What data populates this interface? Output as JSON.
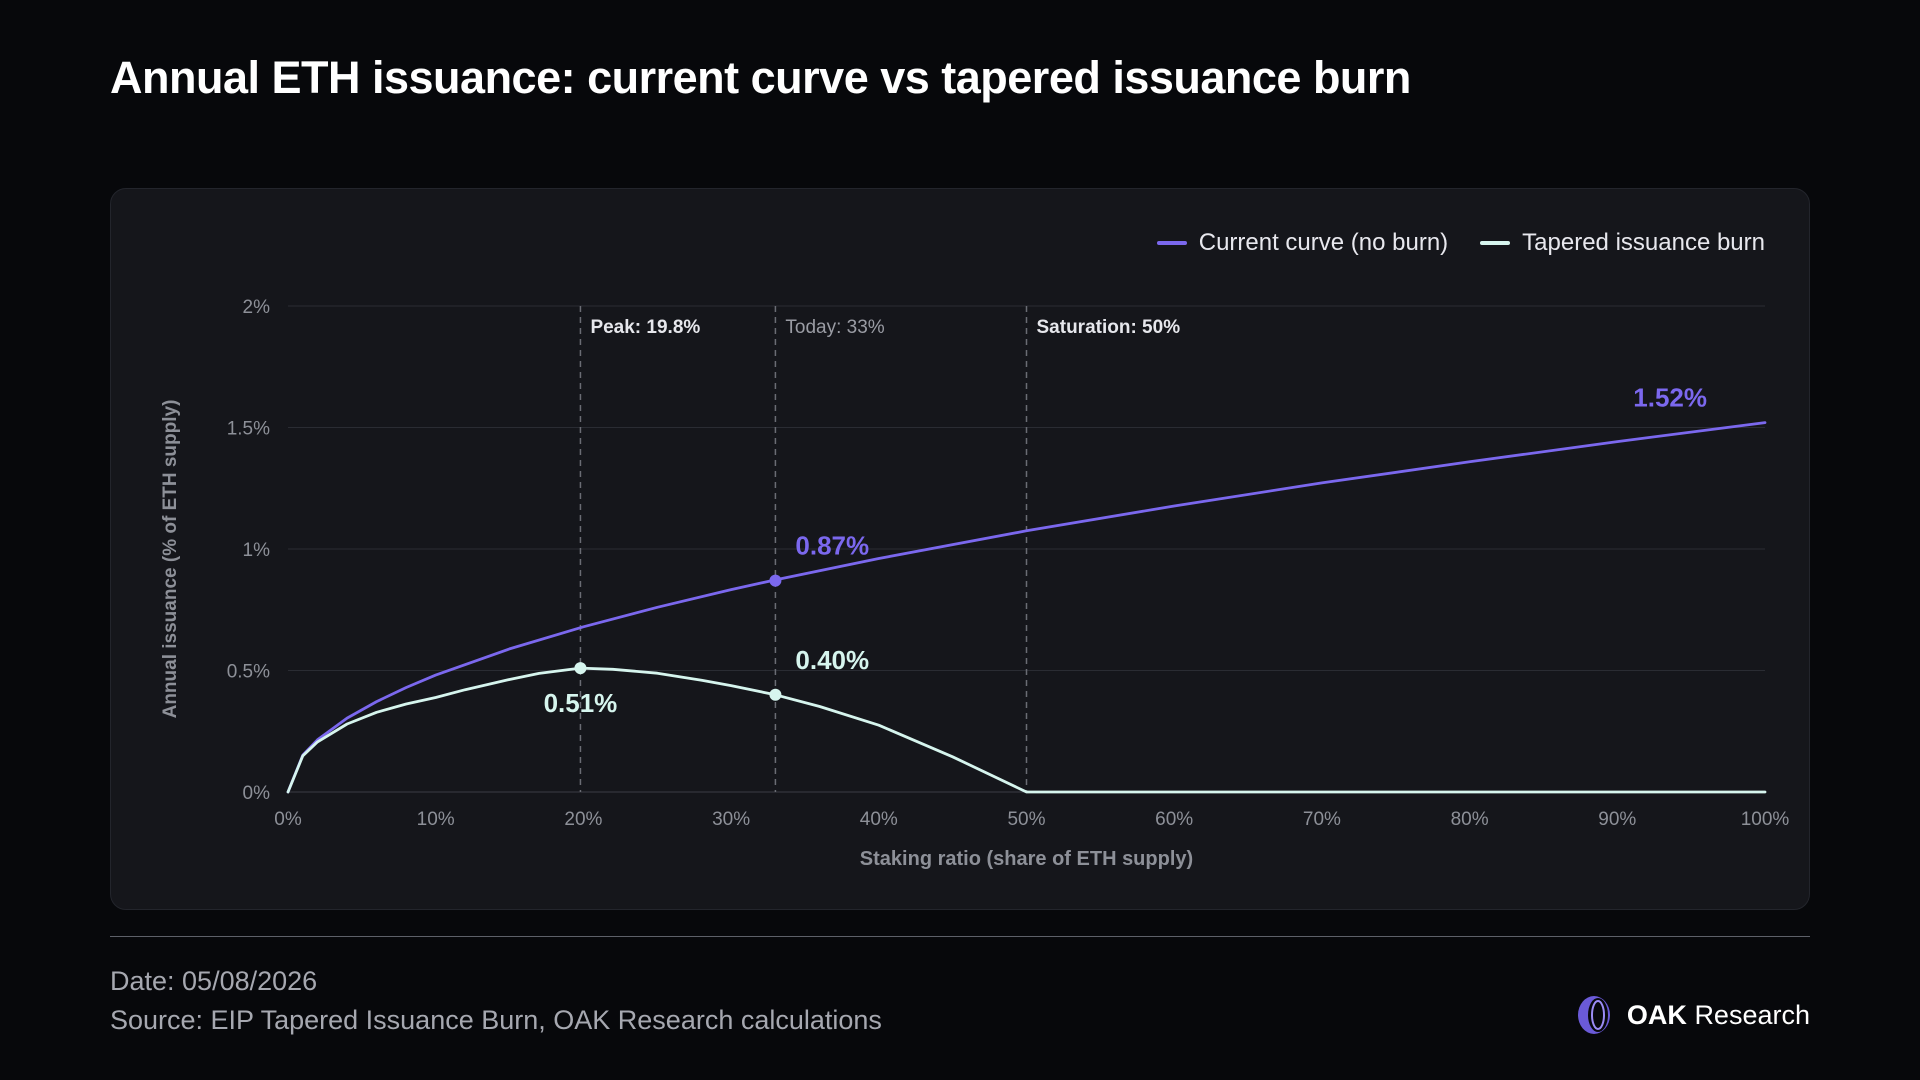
{
  "header": {
    "title": "Annual ETH issuance: current curve vs tapered issuance burn"
  },
  "colors": {
    "current": "#7b68ee",
    "tapered": "#d6f5ee",
    "grid": "#2a2c33",
    "tick": "#8d9098",
    "marker_label": "#e6e7ec",
    "today_label": "#9a9ca4"
  },
  "chart_data": {
    "type": "line",
    "xlabel": "Staking ratio (share of ETH supply)",
    "ylabel": "Annual issuance (% of ETH supply)",
    "xlim": [
      0,
      100
    ],
    "ylim": [
      0,
      2
    ],
    "x_ticks": [
      "0%",
      "10%",
      "20%",
      "30%",
      "40%",
      "50%",
      "60%",
      "70%",
      "80%",
      "90%",
      "100%"
    ],
    "y_ticks": [
      "0%",
      "0.5%",
      "1%",
      "1.5%",
      "2%"
    ],
    "grid": "horizontal",
    "legend_position": "top-right",
    "series": [
      {
        "name": "Current curve (no burn)",
        "x": [
          0,
          1,
          2,
          4,
          6,
          8,
          10,
          15,
          20,
          25,
          30,
          33,
          40,
          50,
          60,
          70,
          80,
          90,
          100
        ],
        "y": [
          0,
          0.152,
          0.215,
          0.304,
          0.372,
          0.43,
          0.481,
          0.589,
          0.68,
          0.76,
          0.833,
          0.873,
          0.961,
          1.075,
          1.177,
          1.272,
          1.359,
          1.442,
          1.52
        ]
      },
      {
        "name": "Tapered issuance burn",
        "x": [
          0,
          1,
          2,
          4,
          6,
          8,
          10,
          12,
          15,
          17,
          19.8,
          22,
          25,
          28,
          30,
          33,
          36,
          40,
          45,
          50,
          60,
          70,
          80,
          90,
          100
        ],
        "y": [
          0,
          0.149,
          0.206,
          0.28,
          0.328,
          0.362,
          0.389,
          0.421,
          0.463,
          0.488,
          0.51,
          0.505,
          0.489,
          0.46,
          0.438,
          0.4,
          0.352,
          0.275,
          0.145,
          0,
          0,
          0,
          0,
          0,
          0
        ]
      }
    ],
    "markers": [
      {
        "x": 19.8,
        "label": "Peak: 19.8%",
        "style": "bold"
      },
      {
        "x": 33,
        "label": "Today: 33%",
        "style": "muted"
      },
      {
        "x": 50,
        "label": "Saturation: 50%",
        "style": "bold"
      }
    ],
    "points": [
      {
        "series": 0,
        "x": 33,
        "y": 0.87,
        "label": "0.87%",
        "position": "above-right"
      },
      {
        "series": 1,
        "x": 33,
        "y": 0.4,
        "label": "0.40%",
        "position": "above-right"
      },
      {
        "series": 1,
        "x": 19.8,
        "y": 0.51,
        "label": "0.51%",
        "position": "below"
      }
    ],
    "end_labels": [
      {
        "series": 0,
        "x": 100,
        "y": 1.52,
        "label": "1.52%"
      }
    ]
  },
  "footer": {
    "date": "Date: 05/08/2026",
    "source": "Source: EIP Tapered Issuance Burn, OAK Research calculations",
    "brand_bold": "OAK",
    "brand_rest": "Research"
  }
}
